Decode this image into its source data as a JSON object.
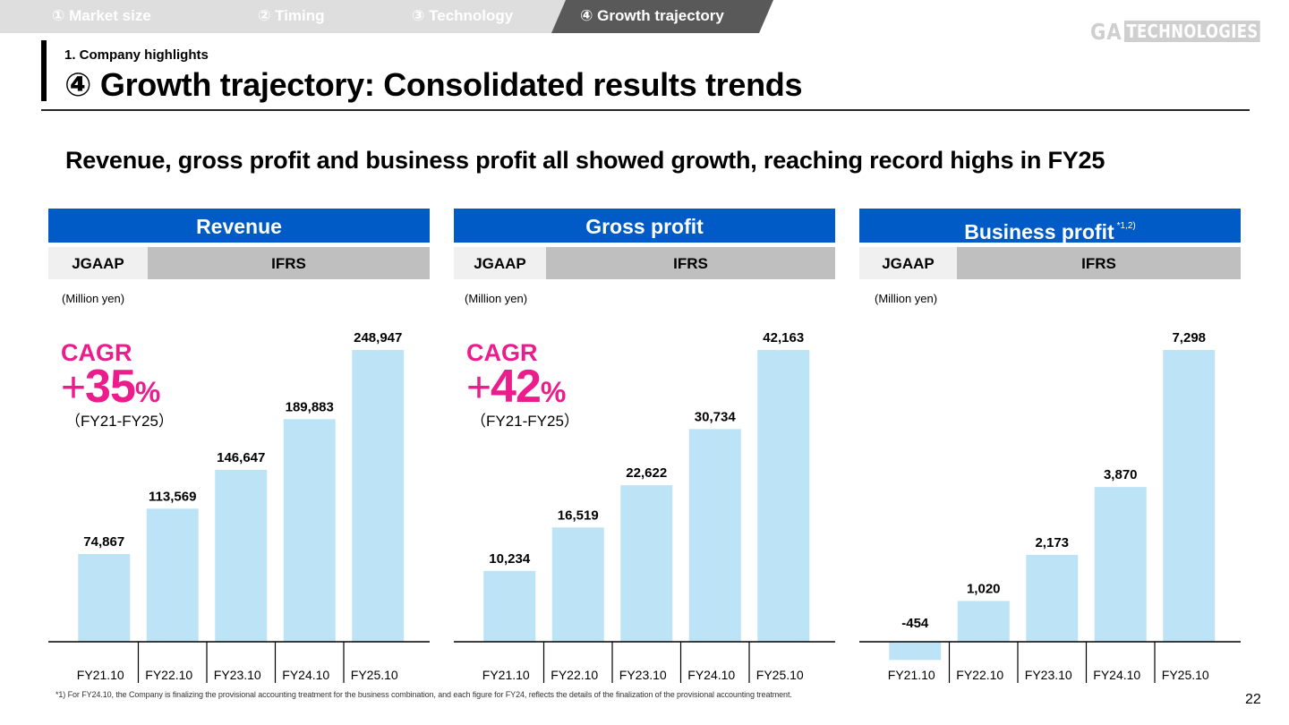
{
  "nav": {
    "tabs": [
      {
        "label": "① Market size",
        "active": false
      },
      {
        "label": "② Timing",
        "active": false
      },
      {
        "label": "③ Technology",
        "active": false
      },
      {
        "label": "④ Growth trajectory",
        "active": true
      }
    ]
  },
  "logo": {
    "part1": "GA",
    "part2": "TECHNOLOGIES"
  },
  "header": {
    "section": "1. Company highlights",
    "title": "④ Growth trajectory: Consolidated results trends"
  },
  "headline": "Revenue, gross profit and business profit all showed growth, reaching record highs in FY25",
  "colors": {
    "header_blue": "#005bc6",
    "bar_fill": "#bde3f7",
    "cagr_pink": "#ec1c8c",
    "jgaap_bg": "#f0f0f0",
    "ifrs_bg": "#bfbfbf"
  },
  "panels": [
    {
      "title": "Revenue",
      "title_note": "",
      "standards": {
        "jgaap": "JGAAP",
        "ifrs": "IFRS"
      },
      "unit": "(Million yen)",
      "cagr": {
        "label": "CAGR",
        "plus": "+",
        "value": "35",
        "pct": "%",
        "period": "（FY21-FY25）"
      }
    },
    {
      "title": "Gross profit",
      "title_note": "",
      "standards": {
        "jgaap": "JGAAP",
        "ifrs": "IFRS"
      },
      "unit": "(Million yen)",
      "cagr": {
        "label": "CAGR",
        "plus": "+",
        "value": "42",
        "pct": "%",
        "period": "（FY21-FY25）"
      }
    },
    {
      "title": "Business profit",
      "title_note": "*1,2)",
      "standards": {
        "jgaap": "JGAAP",
        "ifrs": "IFRS"
      },
      "unit": "(Million yen)",
      "cagr": null
    }
  ],
  "chart_data": [
    {
      "type": "bar",
      "title": "Revenue",
      "ylabel": "Million yen",
      "categories": [
        "FY21.10",
        "FY22.10",
        "FY23.10",
        "FY24.10",
        "FY25.10"
      ],
      "values": [
        74867,
        113569,
        146647,
        189883,
        248947
      ],
      "value_labels": [
        "74,867",
        "113,569",
        "146,647",
        "189,883",
        "248,947"
      ],
      "accounting_standard": [
        "JGAAP",
        "IFRS",
        "IFRS",
        "IFRS",
        "IFRS"
      ],
      "ylim": [
        0,
        248947
      ],
      "grid": false,
      "annotation": "CAGR +35% (FY21-FY25)"
    },
    {
      "type": "bar",
      "title": "Gross profit",
      "ylabel": "Million yen",
      "categories": [
        "FY21.10",
        "FY22.10",
        "FY23.10",
        "FY24.10",
        "FY25.10"
      ],
      "values": [
        10234,
        16519,
        22622,
        30734,
        42163
      ],
      "value_labels": [
        "10,234",
        "16,519",
        "22,622",
        "30,734",
        "42,163"
      ],
      "accounting_standard": [
        "JGAAP",
        "IFRS",
        "IFRS",
        "IFRS",
        "IFRS"
      ],
      "ylim": [
        0,
        42163
      ],
      "grid": false,
      "annotation": "CAGR +42% (FY21-FY25)"
    },
    {
      "type": "bar",
      "title": "Business profit *1,2)",
      "ylabel": "Million yen",
      "categories": [
        "FY21.10",
        "FY22.10",
        "FY23.10",
        "FY24.10",
        "FY25.10"
      ],
      "values": [
        -454,
        1020,
        2173,
        3870,
        7298
      ],
      "value_labels": [
        "-454",
        "1,020",
        "2,173",
        "3,870",
        "7,298"
      ],
      "accounting_standard": [
        "JGAAP",
        "IFRS",
        "IFRS",
        "IFRS",
        "IFRS"
      ],
      "ylim": [
        -454,
        7298
      ],
      "grid": false
    }
  ],
  "footnote": "*1) For FY24.10, the Company is finalizing the provisional accounting treatment for the business combination, and each figure for FY24, reflects the details of the finalization of the provisional accounting treatment.",
  "page_number": "22"
}
